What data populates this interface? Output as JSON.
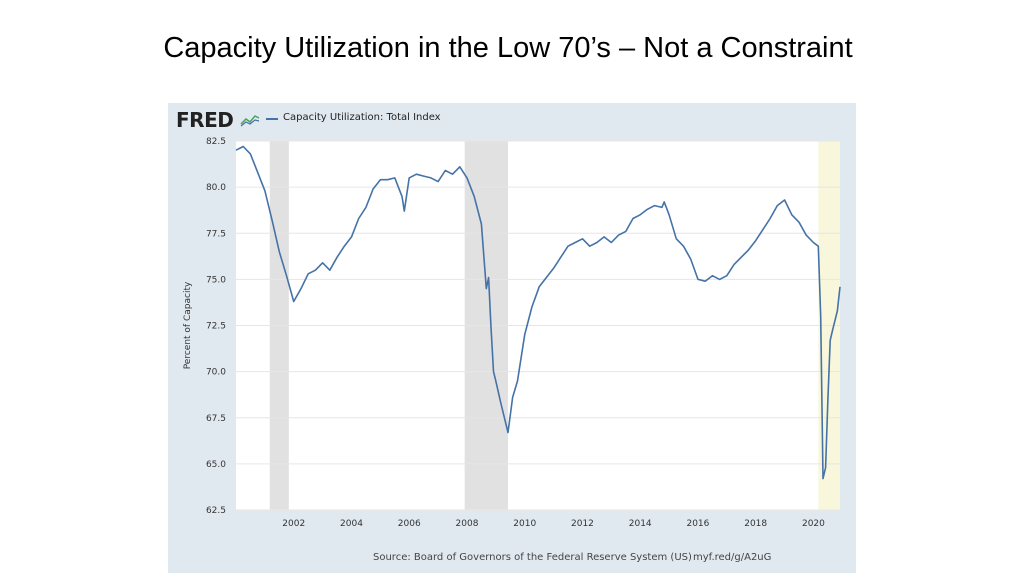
{
  "slide": {
    "title": "Capacity Utilization in the Low 70’s – Not a Constraint"
  },
  "fred": {
    "logo": "FRED",
    "legend_label": "Capacity Utilization: Total Index",
    "source": "Source: Board of Governors of the Federal Reserve System (US)",
    "link": "myf.red/g/A2uG"
  },
  "colors": {
    "line": "#4572a7",
    "recession": "#e1e1e1",
    "highlight": "#f8f7dc",
    "panel": "#e1e9f0"
  },
  "chart_data": {
    "type": "line",
    "title": "Capacity Utilization: Total Index",
    "xlabel": "",
    "ylabel": "Percent of Capacity",
    "xlim": [
      2000.0,
      2020.92
    ],
    "ylim": [
      62.5,
      82.5
    ],
    "yticks": [
      62.5,
      65.0,
      67.5,
      70.0,
      72.5,
      75.0,
      77.5,
      80.0,
      82.5
    ],
    "ytick_labels": [
      "62.5",
      "65.0",
      "67.5",
      "70.0",
      "72.5",
      "75.0",
      "77.5",
      "80.0",
      "82.5"
    ],
    "xticks": [
      2002,
      2004,
      2006,
      2008,
      2010,
      2012,
      2014,
      2016,
      2018,
      2020
    ],
    "xtick_labels": [
      "2002",
      "2004",
      "2006",
      "2008",
      "2010",
      "2012",
      "2014",
      "2016",
      "2018",
      "2020"
    ],
    "shaded_ranges": [
      [
        2001.17,
        2001.83
      ],
      [
        2007.92,
        2009.42
      ]
    ],
    "highlight_range": [
      2020.17,
      2020.92
    ],
    "grid": true,
    "series": [
      {
        "name": "Capacity Utilization: Total Index",
        "x": [
          2000.0,
          2000.25,
          2000.5,
          2000.75,
          2001.0,
          2001.25,
          2001.5,
          2001.75,
          2002.0,
          2002.25,
          2002.5,
          2002.75,
          2003.0,
          2003.25,
          2003.5,
          2003.75,
          2004.0,
          2004.25,
          2004.5,
          2004.75,
          2005.0,
          2005.25,
          2005.5,
          2005.75,
          2005.83,
          2006.0,
          2006.25,
          2006.5,
          2006.75,
          2007.0,
          2007.25,
          2007.5,
          2007.75,
          2008.0,
          2008.25,
          2008.5,
          2008.67,
          2008.75,
          2008.83,
          2008.92,
          2009.0,
          2009.17,
          2009.42,
          2009.58,
          2009.75,
          2010.0,
          2010.25,
          2010.5,
          2010.75,
          2011.0,
          2011.25,
          2011.5,
          2011.75,
          2012.0,
          2012.25,
          2012.5,
          2012.75,
          2013.0,
          2013.25,
          2013.5,
          2013.75,
          2014.0,
          2014.25,
          2014.5,
          2014.75,
          2014.83,
          2015.0,
          2015.25,
          2015.5,
          2015.75,
          2016.0,
          2016.25,
          2016.5,
          2016.75,
          2017.0,
          2017.25,
          2017.5,
          2017.75,
          2018.0,
          2018.25,
          2018.5,
          2018.75,
          2019.0,
          2019.25,
          2019.5,
          2019.75,
          2020.0,
          2020.17,
          2020.25,
          2020.33,
          2020.42,
          2020.5,
          2020.58,
          2020.67,
          2020.75,
          2020.83,
          2020.92
        ],
        "values": [
          82.0,
          82.2,
          81.8,
          80.8,
          79.8,
          78.2,
          76.5,
          75.2,
          73.8,
          74.5,
          75.3,
          75.5,
          75.9,
          75.5,
          76.2,
          76.8,
          77.3,
          78.3,
          78.9,
          79.9,
          80.4,
          80.4,
          80.5,
          79.5,
          78.7,
          80.5,
          80.7,
          80.6,
          80.5,
          80.3,
          80.9,
          80.7,
          81.1,
          80.5,
          79.5,
          78.0,
          74.5,
          75.1,
          72.5,
          70.0,
          69.5,
          68.3,
          66.7,
          68.6,
          69.5,
          72.0,
          73.5,
          74.6,
          75.1,
          75.6,
          76.2,
          76.8,
          77.0,
          77.2,
          76.8,
          77.0,
          77.3,
          77.0,
          77.4,
          77.6,
          78.3,
          78.5,
          78.8,
          79.0,
          78.9,
          79.2,
          78.5,
          77.2,
          76.8,
          76.1,
          75.0,
          74.9,
          75.2,
          75.0,
          75.2,
          75.8,
          76.2,
          76.6,
          77.1,
          77.7,
          78.3,
          79.0,
          79.3,
          78.5,
          78.1,
          77.4,
          77.0,
          76.8,
          73.0,
          64.2,
          64.8,
          68.5,
          71.7,
          72.3,
          72.8,
          73.3,
          74.6
        ]
      }
    ]
  }
}
